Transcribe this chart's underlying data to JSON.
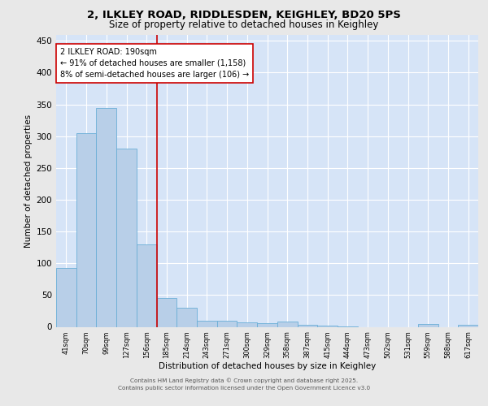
{
  "title1": "2, ILKLEY ROAD, RIDDLESDEN, KEIGHLEY, BD20 5PS",
  "title2": "Size of property relative to detached houses in Keighley",
  "xlabel": "Distribution of detached houses by size in Keighley",
  "ylabel": "Number of detached properties",
  "categories": [
    "41sqm",
    "70sqm",
    "99sqm",
    "127sqm",
    "156sqm",
    "185sqm",
    "214sqm",
    "243sqm",
    "271sqm",
    "300sqm",
    "329sqm",
    "358sqm",
    "387sqm",
    "415sqm",
    "444sqm",
    "473sqm",
    "502sqm",
    "531sqm",
    "559sqm",
    "588sqm",
    "617sqm"
  ],
  "values": [
    93,
    305,
    344,
    280,
    130,
    46,
    30,
    10,
    10,
    7,
    6,
    8,
    3,
    2,
    1,
    0,
    0,
    0,
    4,
    0,
    3
  ],
  "bar_color": "#b8cfe8",
  "bar_edge_color": "#6aaed6",
  "annotation_text1": "2 ILKLEY ROAD: 190sqm",
  "annotation_text2": "← 91% of detached houses are smaller (1,158)",
  "annotation_text3": "8% of semi-detached houses are larger (106) →",
  "red_line_color": "#cc0000",
  "ylim": [
    0,
    460
  ],
  "yticks": [
    0,
    50,
    100,
    150,
    200,
    250,
    300,
    350,
    400,
    450
  ],
  "plot_bg_color": "#d6e4f7",
  "fig_bg_color": "#e8e8e8",
  "footer1": "Contains HM Land Registry data © Crown copyright and database right 2025.",
  "footer2": "Contains public sector information licensed under the Open Government Licence v3.0"
}
